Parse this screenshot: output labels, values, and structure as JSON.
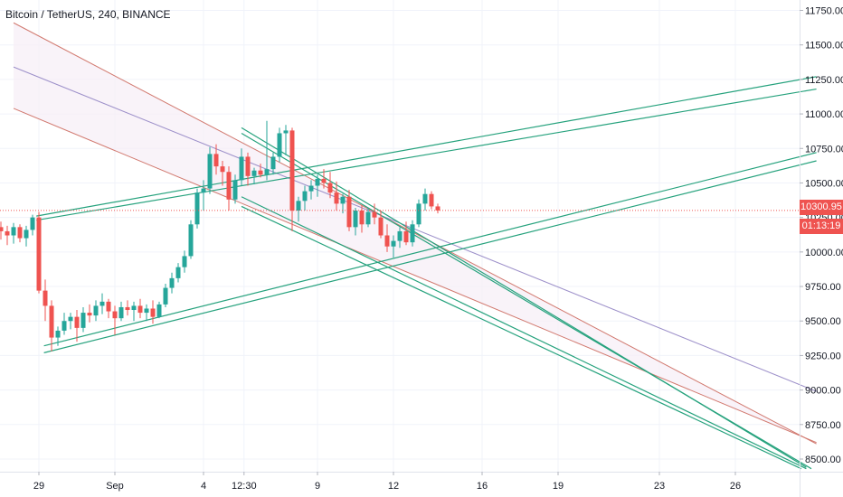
{
  "header": {
    "title": "Bitcoin / TetherUS, 240, BINANCE"
  },
  "colors": {
    "up": "#26a69a",
    "down": "#ef5350",
    "grid": "#f0f3fa",
    "axis": "#e0e3eb",
    "channel_outer": "#d1786e",
    "channel_mid": "#9c8fc9",
    "channel_fill": "#f7eef7",
    "trendline": "#26a27d",
    "last_price_line": "#ef5350"
  },
  "price_tags": {
    "last_price": "10300.95",
    "countdown": "01:13:19"
  },
  "chart_data": {
    "type": "candlestick",
    "title": "Bitcoin / TetherUS, 240, BINANCE",
    "symbol": "BTCUSDT",
    "interval": "240",
    "exchange": "BINANCE",
    "y_axis": {
      "position": "right",
      "range": [
        8430,
        11880
      ],
      "ticks": [
        "11750.00",
        "11500.00",
        "11250.00",
        "11000.00",
        "10750.00",
        "10500.00",
        "10250.00",
        "10000.00",
        "9750.00",
        "9500.00",
        "9250.00",
        "9000.00",
        "8750.00",
        "8500.00"
      ]
    },
    "x_axis": {
      "ticks": [
        "29",
        "Sep",
        "4",
        "12:30",
        "9",
        "12",
        "16",
        "19",
        "23",
        "26"
      ],
      "tick_days": [
        0,
        3,
        6.5,
        8.1,
        11,
        14,
        17.5,
        20.5,
        24.5,
        27.5
      ]
    },
    "grid": true,
    "last_price": 10300.95,
    "candles_ohlc": [
      [
        10180,
        10220,
        10090,
        10150
      ],
      [
        10150,
        10190,
        10050,
        10120
      ],
      [
        10120,
        10210,
        10060,
        10180
      ],
      [
        10180,
        10200,
        10070,
        10100
      ],
      [
        10100,
        10190,
        10040,
        10160
      ],
      [
        10160,
        10270,
        10120,
        10250
      ],
      [
        10250,
        10290,
        9700,
        9720
      ],
      [
        9720,
        9800,
        9500,
        9610
      ],
      [
        9610,
        9650,
        9280,
        9380
      ],
      [
        9380,
        9460,
        9320,
        9430
      ],
      [
        9430,
        9560,
        9400,
        9500
      ],
      [
        9500,
        9560,
        9440,
        9530
      ],
      [
        9530,
        9580,
        9350,
        9450
      ],
      [
        9450,
        9600,
        9420,
        9560
      ],
      [
        9560,
        9620,
        9490,
        9540
      ],
      [
        9540,
        9650,
        9500,
        9610
      ],
      [
        9610,
        9700,
        9550,
        9640
      ],
      [
        9640,
        9660,
        9520,
        9570
      ],
      [
        9570,
        9610,
        9400,
        9520
      ],
      [
        9520,
        9640,
        9500,
        9600
      ],
      [
        9600,
        9650,
        9540,
        9580
      ],
      [
        9580,
        9640,
        9500,
        9610
      ],
      [
        9610,
        9660,
        9520,
        9560
      ],
      [
        9560,
        9620,
        9500,
        9590
      ],
      [
        9590,
        9650,
        9480,
        9530
      ],
      [
        9530,
        9640,
        9520,
        9620
      ],
      [
        9620,
        9770,
        9600,
        9740
      ],
      [
        9740,
        9850,
        9700,
        9810
      ],
      [
        9810,
        9920,
        9780,
        9890
      ],
      [
        9890,
        10010,
        9850,
        9970
      ],
      [
        9970,
        10230,
        9950,
        10200
      ],
      [
        10200,
        10460,
        10170,
        10430
      ],
      [
        10430,
        10520,
        10300,
        10460
      ],
      [
        10460,
        10760,
        10420,
        10710
      ],
      [
        10710,
        10780,
        10560,
        10620
      ],
      [
        10620,
        10660,
        10480,
        10580
      ],
      [
        10580,
        10620,
        10300,
        10380
      ],
      [
        10380,
        10560,
        10350,
        10520
      ],
      [
        10520,
        10750,
        10480,
        10690
      ],
      [
        10690,
        10720,
        10480,
        10550
      ],
      [
        10550,
        10610,
        10490,
        10590
      ],
      [
        10590,
        10640,
        10540,
        10560
      ],
      [
        10560,
        10950,
        10520,
        10600
      ],
      [
        10600,
        10720,
        10560,
        10690
      ],
      [
        10690,
        10900,
        10650,
        10860
      ],
      [
        10860,
        10920,
        10700,
        10880
      ],
      [
        10880,
        10900,
        10150,
        10300
      ],
      [
        10300,
        10400,
        10220,
        10370
      ],
      [
        10370,
        10480,
        10300,
        10440
      ],
      [
        10440,
        10520,
        10380,
        10480
      ],
      [
        10480,
        10560,
        10400,
        10530
      ],
      [
        10530,
        10600,
        10460,
        10500
      ],
      [
        10500,
        10580,
        10390,
        10430
      ],
      [
        10430,
        10510,
        10300,
        10350
      ],
      [
        10350,
        10420,
        10280,
        10400
      ],
      [
        10400,
        10450,
        10150,
        10180
      ],
      [
        10180,
        10320,
        10120,
        10300
      ],
      [
        10300,
        10340,
        10140,
        10200
      ],
      [
        10200,
        10320,
        10180,
        10290
      ],
      [
        10290,
        10350,
        10200,
        10250
      ],
      [
        10250,
        10300,
        10100,
        10120
      ],
      [
        10120,
        10200,
        10000,
        10040
      ],
      [
        10040,
        10120,
        9960,
        10080
      ],
      [
        10080,
        10180,
        10030,
        10150
      ],
      [
        10150,
        10220,
        10050,
        10070
      ],
      [
        10070,
        10230,
        10040,
        10200
      ],
      [
        10200,
        10380,
        10180,
        10350
      ],
      [
        10350,
        10460,
        10300,
        10420
      ],
      [
        10420,
        10440,
        10310,
        10330
      ],
      [
        10330,
        10350,
        10280,
        10300.95
      ]
    ],
    "drawings": {
      "regression_channel": {
        "upper": {
          "from": [
            -1,
            11660
          ],
          "to": [
            30.7,
            8610
          ]
        },
        "middle": {
          "from": [
            -1,
            11340
          ],
          "to": [
            30.7,
            8990
          ]
        },
        "lower": {
          "from": [
            -1,
            11040
          ],
          "to": [
            30.7,
            8620
          ]
        }
      },
      "trend_lines": [
        {
          "from": [
            -0.1,
            10260
          ],
          "to": [
            30.7,
            11270
          ]
        },
        {
          "from": [
            -0.1,
            10230
          ],
          "to": [
            30.7,
            11180
          ]
        },
        {
          "from": [
            0.2,
            9320
          ],
          "to": [
            30.7,
            10720
          ]
        },
        {
          "from": [
            0.2,
            9270
          ],
          "to": [
            30.7,
            10660
          ]
        },
        {
          "from": [
            8,
            10900
          ],
          "to": [
            30.3,
            8440
          ]
        },
        {
          "from": [
            8,
            10860
          ],
          "to": [
            30.5,
            8430
          ]
        },
        {
          "from": [
            8,
            10400
          ],
          "to": [
            30.3,
            8430
          ]
        },
        {
          "from": [
            8,
            10330
          ],
          "to": [
            30.1,
            8430
          ]
        }
      ]
    }
  }
}
